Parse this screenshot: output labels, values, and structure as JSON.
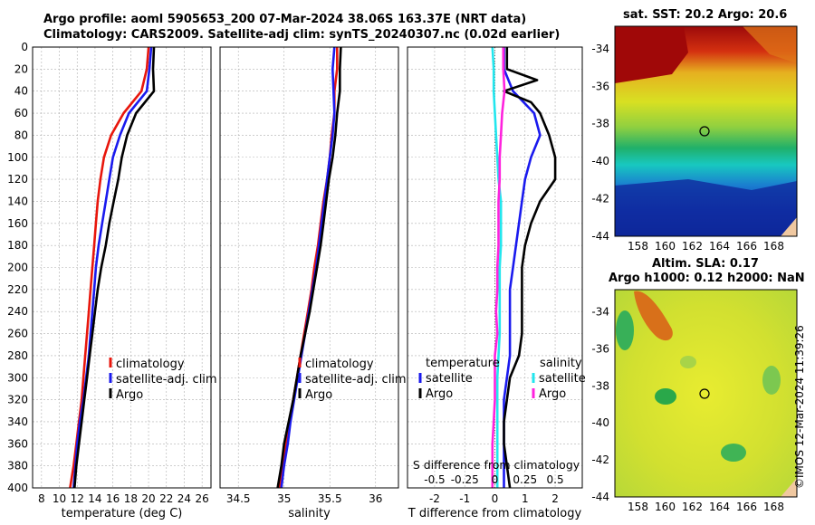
{
  "header": {
    "title_line1": "Argo profile: aoml 5905653_200 07-Mar-2024 38.06S 163.37E (NRT data)",
    "title_line2": "Climatology: CARS2009. Satellite-adj clim: synTS_20240307.nc (0.02d earlier)"
  },
  "maps": {
    "sst_title": "sat. SST: 20.2 Argo: 20.6",
    "sla_title_line1": "Altim. SLA: 0.17",
    "sla_title_line2": "Argo h1000: 0.12 h2000: NaN",
    "lat_ticks": [
      "-34",
      "-36",
      "-38",
      "-40",
      "-42",
      "-44"
    ],
    "lon_ticks": [
      "158",
      "160",
      "162",
      "164",
      "166",
      "168"
    ],
    "float_position": {
      "lon": 163.37,
      "lat": -38.06
    }
  },
  "colors": {
    "climatology": "#e8160c",
    "satellite": "#1a1aee",
    "argo": "#000000",
    "argo_salinity_diff": "#ff22dd",
    "satellite_salinity_diff": "#22e6ee",
    "grid": "#b0b0b0"
  },
  "footer": {
    "stamp": "©IMOS 12-Mar-2024 11:39:26"
  },
  "chart_data": [
    {
      "type": "line",
      "name": "temperature-profile",
      "xlabel": "temperature (deg C)",
      "ylabel": "",
      "xlim": [
        7,
        27
      ],
      "ylim": [
        400,
        0
      ],
      "xticks": [
        "8",
        "10",
        "12",
        "14",
        "16",
        "18",
        "20",
        "22",
        "24",
        "26"
      ],
      "yticks": [
        "0",
        "20",
        "40",
        "60",
        "80",
        "100",
        "120",
        "140",
        "160",
        "180",
        "200",
        "220",
        "240",
        "260",
        "280",
        "300",
        "320",
        "340",
        "360",
        "380",
        "400"
      ],
      "legend": [
        "climatology",
        "satellite-adj. clim",
        "Argo"
      ],
      "legend_position": "lower-right",
      "series": [
        {
          "name": "climatology",
          "points": [
            [
              20.0,
              0
            ],
            [
              19.8,
              20
            ],
            [
              19.2,
              40
            ],
            [
              17.2,
              60
            ],
            [
              15.8,
              80
            ],
            [
              15.0,
              100
            ],
            [
              14.6,
              120
            ],
            [
              14.3,
              140
            ],
            [
              14.1,
              160
            ],
            [
              13.9,
              180
            ],
            [
              13.7,
              200
            ],
            [
              13.5,
              220
            ],
            [
              13.3,
              240
            ],
            [
              13.1,
              260
            ],
            [
              12.9,
              280
            ],
            [
              12.7,
              300
            ],
            [
              12.5,
              320
            ],
            [
              12.2,
              340
            ],
            [
              11.9,
              360
            ],
            [
              11.6,
              380
            ],
            [
              11.2,
              400
            ]
          ]
        },
        {
          "name": "satellite-adj. clim",
          "points": [
            [
              20.3,
              0
            ],
            [
              20.1,
              20
            ],
            [
              19.8,
              40
            ],
            [
              17.8,
              60
            ],
            [
              16.8,
              80
            ],
            [
              16.0,
              100
            ],
            [
              15.6,
              120
            ],
            [
              15.2,
              140
            ],
            [
              14.8,
              160
            ],
            [
              14.4,
              180
            ],
            [
              14.1,
              200
            ],
            [
              13.9,
              220
            ],
            [
              13.7,
              240
            ],
            [
              13.5,
              260
            ],
            [
              13.3,
              280
            ],
            [
              13.0,
              300
            ],
            [
              12.7,
              320
            ],
            [
              12.3,
              340
            ],
            [
              12.0,
              360
            ],
            [
              11.8,
              380
            ],
            [
              11.6,
              400
            ]
          ]
        },
        {
          "name": "Argo",
          "points": [
            [
              20.6,
              0
            ],
            [
              20.5,
              20
            ],
            [
              20.6,
              40
            ],
            [
              18.6,
              60
            ],
            [
              17.6,
              80
            ],
            [
              17.0,
              100
            ],
            [
              16.6,
              120
            ],
            [
              16.1,
              140
            ],
            [
              15.6,
              160
            ],
            [
              15.2,
              180
            ],
            [
              14.7,
              200
            ],
            [
              14.3,
              220
            ],
            [
              14.0,
              240
            ],
            [
              13.7,
              260
            ],
            [
              13.4,
              280
            ],
            [
              13.1,
              300
            ],
            [
              12.8,
              320
            ],
            [
              12.5,
              340
            ],
            [
              12.2,
              360
            ],
            [
              11.9,
              380
            ],
            [
              11.7,
              400
            ]
          ]
        }
      ]
    },
    {
      "type": "line",
      "name": "salinity-profile",
      "xlabel": "salinity",
      "ylabel": "",
      "xlim": [
        34.3,
        36.25
      ],
      "ylim": [
        400,
        0
      ],
      "xticks": [
        "34.5",
        "35",
        "35.5",
        "36"
      ],
      "legend": [
        "climatology",
        "satellite-adj. clim",
        "Argo"
      ],
      "legend_position": "lower-right",
      "series": [
        {
          "name": "climatology",
          "points": [
            [
              35.58,
              0
            ],
            [
              35.58,
              20
            ],
            [
              35.55,
              40
            ],
            [
              35.55,
              60
            ],
            [
              35.52,
              80
            ],
            [
              35.5,
              100
            ],
            [
              35.47,
              120
            ],
            [
              35.43,
              140
            ],
            [
              35.4,
              160
            ],
            [
              35.37,
              180
            ],
            [
              35.33,
              200
            ],
            [
              35.3,
              220
            ],
            [
              35.26,
              240
            ],
            [
              35.22,
              260
            ],
            [
              35.18,
              280
            ],
            [
              35.14,
              300
            ],
            [
              35.1,
              320
            ],
            [
              35.06,
              340
            ],
            [
              35.02,
              360
            ],
            [
              34.99,
              380
            ],
            [
              34.95,
              400
            ]
          ]
        },
        {
          "name": "satellite-adj. clim",
          "points": [
            [
              35.55,
              0
            ],
            [
              35.53,
              20
            ],
            [
              35.54,
              40
            ],
            [
              35.55,
              60
            ],
            [
              35.53,
              80
            ],
            [
              35.5,
              100
            ],
            [
              35.47,
              120
            ],
            [
              35.44,
              140
            ],
            [
              35.41,
              160
            ],
            [
              35.38,
              180
            ],
            [
              35.35,
              200
            ],
            [
              35.31,
              220
            ],
            [
              35.27,
              240
            ],
            [
              35.23,
              260
            ],
            [
              35.19,
              280
            ],
            [
              35.15,
              300
            ],
            [
              35.11,
              320
            ],
            [
              35.07,
              340
            ],
            [
              35.04,
              360
            ],
            [
              35.0,
              380
            ],
            [
              34.97,
              400
            ]
          ]
        },
        {
          "name": "Argo",
          "points": [
            [
              35.62,
              0
            ],
            [
              35.61,
              20
            ],
            [
              35.61,
              40
            ],
            [
              35.58,
              60
            ],
            [
              35.56,
              80
            ],
            [
              35.53,
              100
            ],
            [
              35.49,
              120
            ],
            [
              35.46,
              140
            ],
            [
              35.43,
              160
            ],
            [
              35.4,
              180
            ],
            [
              35.36,
              200
            ],
            [
              35.32,
              220
            ],
            [
              35.28,
              240
            ],
            [
              35.23,
              260
            ],
            [
              35.18,
              280
            ],
            [
              35.14,
              300
            ],
            [
              35.1,
              320
            ],
            [
              35.05,
              340
            ],
            [
              35.0,
              360
            ],
            [
              34.97,
              380
            ],
            [
              34.93,
              400
            ]
          ]
        }
      ]
    },
    {
      "type": "line",
      "name": "difference-profile",
      "xlabel": "T difference from climatology",
      "ylabel": "",
      "xlim": [
        -2.9,
        2.9
      ],
      "ylim": [
        400,
        0
      ],
      "xticks": [
        "-2",
        "-1",
        "0",
        "1",
        "2"
      ],
      "secondary_axis_label": "S difference from climatology",
      "secondary_xticks": [
        "-0.5",
        "-0.25",
        "0",
        "0.25",
        "0.5"
      ],
      "legend_temperature_title": "temperature",
      "legend_salinity_title": "salinity",
      "legend_temperature": [
        "satellite",
        "Argo"
      ],
      "legend_salinity": [
        "satellite",
        "Argo"
      ],
      "legend_position": "lower-center",
      "series": [
        {
          "name": "temperature satellite",
          "points": [
            [
              0.3,
              0
            ],
            [
              0.3,
              20
            ],
            [
              0.6,
              40
            ],
            [
              1.3,
              60
            ],
            [
              1.5,
              80
            ],
            [
              1.2,
              100
            ],
            [
              1.0,
              120
            ],
            [
              0.9,
              140
            ],
            [
              0.8,
              160
            ],
            [
              0.7,
              180
            ],
            [
              0.6,
              200
            ],
            [
              0.5,
              220
            ],
            [
              0.5,
              240
            ],
            [
              0.5,
              260
            ],
            [
              0.5,
              280
            ],
            [
              0.4,
              300
            ],
            [
              0.3,
              320
            ],
            [
              0.3,
              340
            ],
            [
              0.3,
              360
            ],
            [
              0.3,
              380
            ],
            [
              0.3,
              400
            ]
          ]
        },
        {
          "name": "temperature Argo",
          "points": [
            [
              0.4,
              0
            ],
            [
              0.4,
              20
            ],
            [
              1.4,
              30
            ],
            [
              0.3,
              40
            ],
            [
              1.2,
              50
            ],
            [
              1.5,
              60
            ],
            [
              1.8,
              80
            ],
            [
              2.0,
              100
            ],
            [
              2.0,
              120
            ],
            [
              1.5,
              140
            ],
            [
              1.2,
              160
            ],
            [
              1.0,
              180
            ],
            [
              0.9,
              200
            ],
            [
              0.9,
              220
            ],
            [
              0.9,
              240
            ],
            [
              0.9,
              260
            ],
            [
              0.8,
              280
            ],
            [
              0.5,
              300
            ],
            [
              0.4,
              320
            ],
            [
              0.3,
              340
            ],
            [
              0.3,
              360
            ],
            [
              0.4,
              380
            ],
            [
              0.5,
              400
            ]
          ]
        },
        {
          "name": "salinity satellite",
          "points": [
            [
              -0.02,
              0
            ],
            [
              -0.01,
              20
            ],
            [
              -0.01,
              40
            ],
            [
              0.0,
              60
            ],
            [
              0.01,
              80
            ],
            [
              0.02,
              100
            ],
            [
              0.03,
              120
            ],
            [
              0.05,
              140
            ],
            [
              0.05,
              160
            ],
            [
              0.05,
              180
            ],
            [
              0.04,
              200
            ],
            [
              0.04,
              220
            ],
            [
              0.04,
              240
            ],
            [
              0.04,
              260
            ],
            [
              0.03,
              280
            ],
            [
              0.02,
              300
            ],
            [
              0.02,
              320
            ],
            [
              0.02,
              340
            ],
            [
              0.02,
              360
            ],
            [
              0.02,
              380
            ],
            [
              0.02,
              400
            ]
          ]
        },
        {
          "name": "salinity Argo",
          "points": [
            [
              0.07,
              0
            ],
            [
              0.07,
              20
            ],
            [
              0.08,
              40
            ],
            [
              0.06,
              60
            ],
            [
              0.05,
              80
            ],
            [
              0.04,
              100
            ],
            [
              0.04,
              120
            ],
            [
              0.03,
              140
            ],
            [
              0.03,
              160
            ],
            [
              0.03,
              180
            ],
            [
              0.02,
              200
            ],
            [
              0.02,
              220
            ],
            [
              0.01,
              240
            ],
            [
              0.02,
              260
            ],
            [
              0.0,
              280
            ],
            [
              0.0,
              300
            ],
            [
              0.0,
              320
            ],
            [
              -0.01,
              340
            ],
            [
              -0.02,
              360
            ],
            [
              -0.02,
              380
            ],
            [
              -0.02,
              400
            ]
          ]
        }
      ]
    }
  ]
}
